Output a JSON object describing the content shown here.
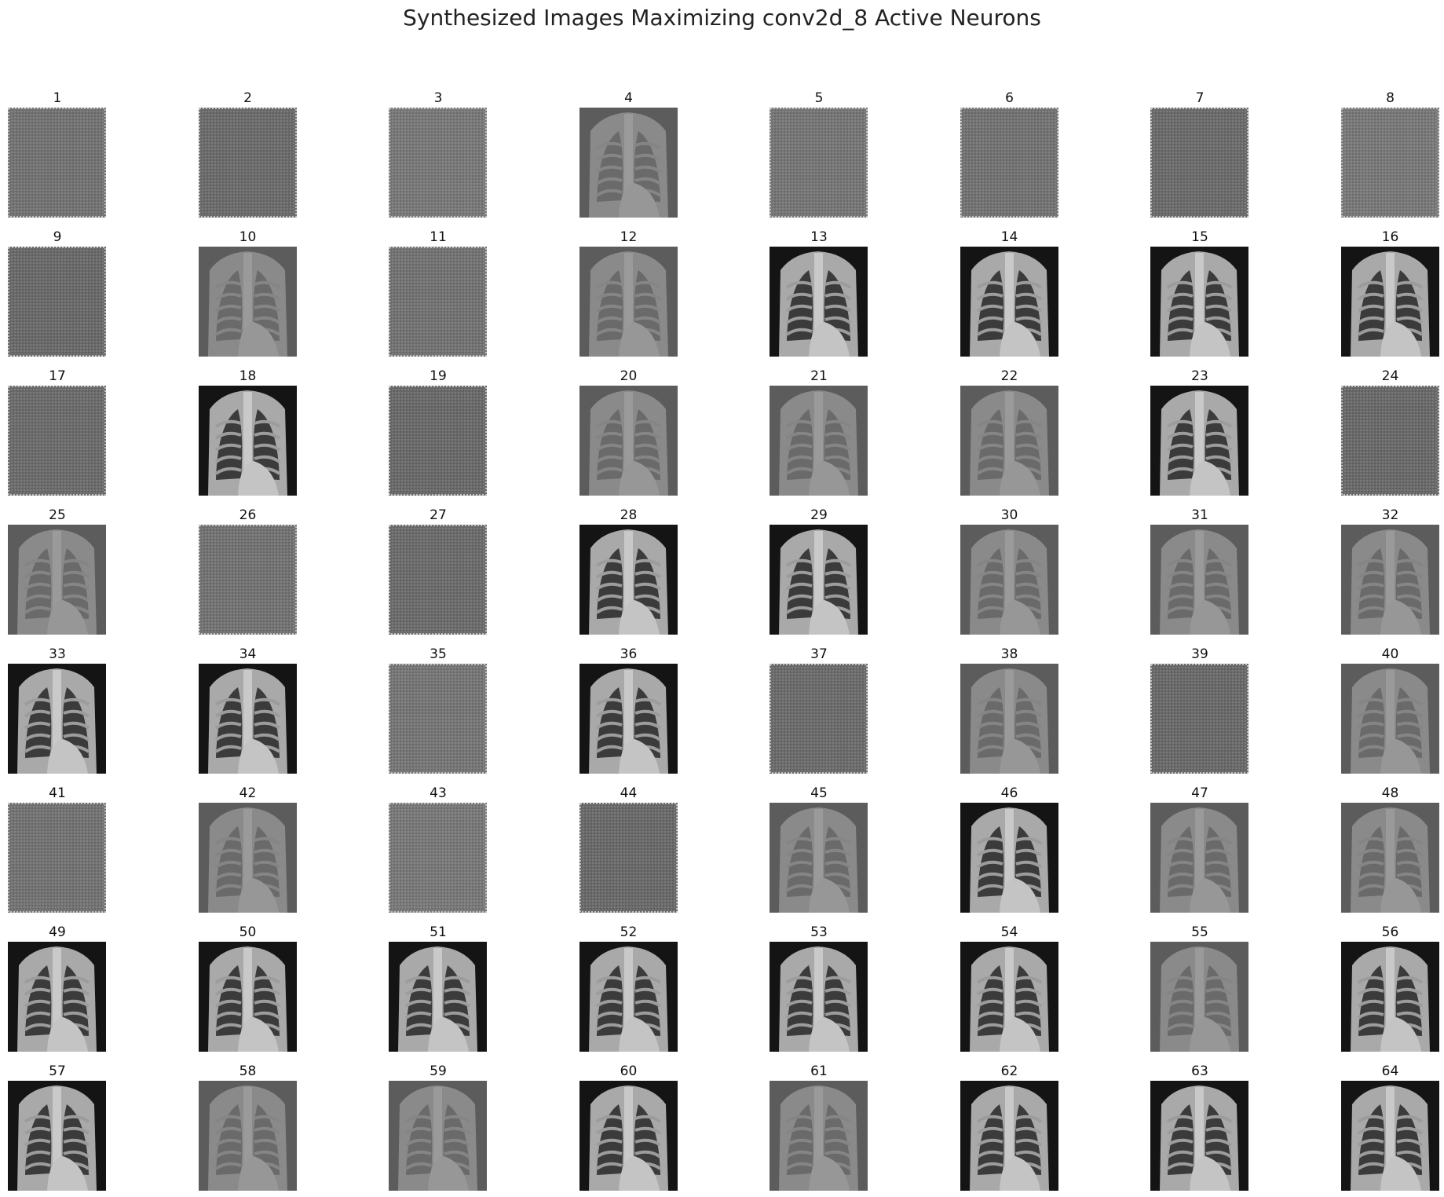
{
  "title": "Synthesized Images Maximizing conv2d_8 Active Neurons",
  "tiles": [
    {
      "label": "1",
      "kind": "noise"
    },
    {
      "label": "2",
      "kind": "noise"
    },
    {
      "label": "3",
      "kind": "noise"
    },
    {
      "label": "4",
      "kind": "faint"
    },
    {
      "label": "5",
      "kind": "noise"
    },
    {
      "label": "6",
      "kind": "noise"
    },
    {
      "label": "7",
      "kind": "noise"
    },
    {
      "label": "8",
      "kind": "noise"
    },
    {
      "label": "9",
      "kind": "noise"
    },
    {
      "label": "10",
      "kind": "faint"
    },
    {
      "label": "11",
      "kind": "noise"
    },
    {
      "label": "12",
      "kind": "faint"
    },
    {
      "label": "13",
      "kind": "xray"
    },
    {
      "label": "14",
      "kind": "xray"
    },
    {
      "label": "15",
      "kind": "xray"
    },
    {
      "label": "16",
      "kind": "xray"
    },
    {
      "label": "17",
      "kind": "noise"
    },
    {
      "label": "18",
      "kind": "xray"
    },
    {
      "label": "19",
      "kind": "noise"
    },
    {
      "label": "20",
      "kind": "faint"
    },
    {
      "label": "21",
      "kind": "faint"
    },
    {
      "label": "22",
      "kind": "faint"
    },
    {
      "label": "23",
      "kind": "xray"
    },
    {
      "label": "24",
      "kind": "noise"
    },
    {
      "label": "25",
      "kind": "faint"
    },
    {
      "label": "26",
      "kind": "noise"
    },
    {
      "label": "27",
      "kind": "noise"
    },
    {
      "label": "28",
      "kind": "xray"
    },
    {
      "label": "29",
      "kind": "xray"
    },
    {
      "label": "30",
      "kind": "faint"
    },
    {
      "label": "31",
      "kind": "faint"
    },
    {
      "label": "32",
      "kind": "faint"
    },
    {
      "label": "33",
      "kind": "xray"
    },
    {
      "label": "34",
      "kind": "xray"
    },
    {
      "label": "35",
      "kind": "noise"
    },
    {
      "label": "36",
      "kind": "xray"
    },
    {
      "label": "37",
      "kind": "noise"
    },
    {
      "label": "38",
      "kind": "faint"
    },
    {
      "label": "39",
      "kind": "noise"
    },
    {
      "label": "40",
      "kind": "faint"
    },
    {
      "label": "41",
      "kind": "noise"
    },
    {
      "label": "42",
      "kind": "faint"
    },
    {
      "label": "43",
      "kind": "noise"
    },
    {
      "label": "44",
      "kind": "noise"
    },
    {
      "label": "45",
      "kind": "faint"
    },
    {
      "label": "46",
      "kind": "xray"
    },
    {
      "label": "47",
      "kind": "faint"
    },
    {
      "label": "48",
      "kind": "faint"
    },
    {
      "label": "49",
      "kind": "xray"
    },
    {
      "label": "50",
      "kind": "xray"
    },
    {
      "label": "51",
      "kind": "xray"
    },
    {
      "label": "52",
      "kind": "xray"
    },
    {
      "label": "53",
      "kind": "xray"
    },
    {
      "label": "54",
      "kind": "xray"
    },
    {
      "label": "55",
      "kind": "faint"
    },
    {
      "label": "56",
      "kind": "xray"
    },
    {
      "label": "57",
      "kind": "xray"
    },
    {
      "label": "58",
      "kind": "faint"
    },
    {
      "label": "59",
      "kind": "faint"
    },
    {
      "label": "60",
      "kind": "xray"
    },
    {
      "label": "61",
      "kind": "faint"
    },
    {
      "label": "62",
      "kind": "xray"
    },
    {
      "label": "63",
      "kind": "xray"
    },
    {
      "label": "64",
      "kind": "xray"
    }
  ]
}
